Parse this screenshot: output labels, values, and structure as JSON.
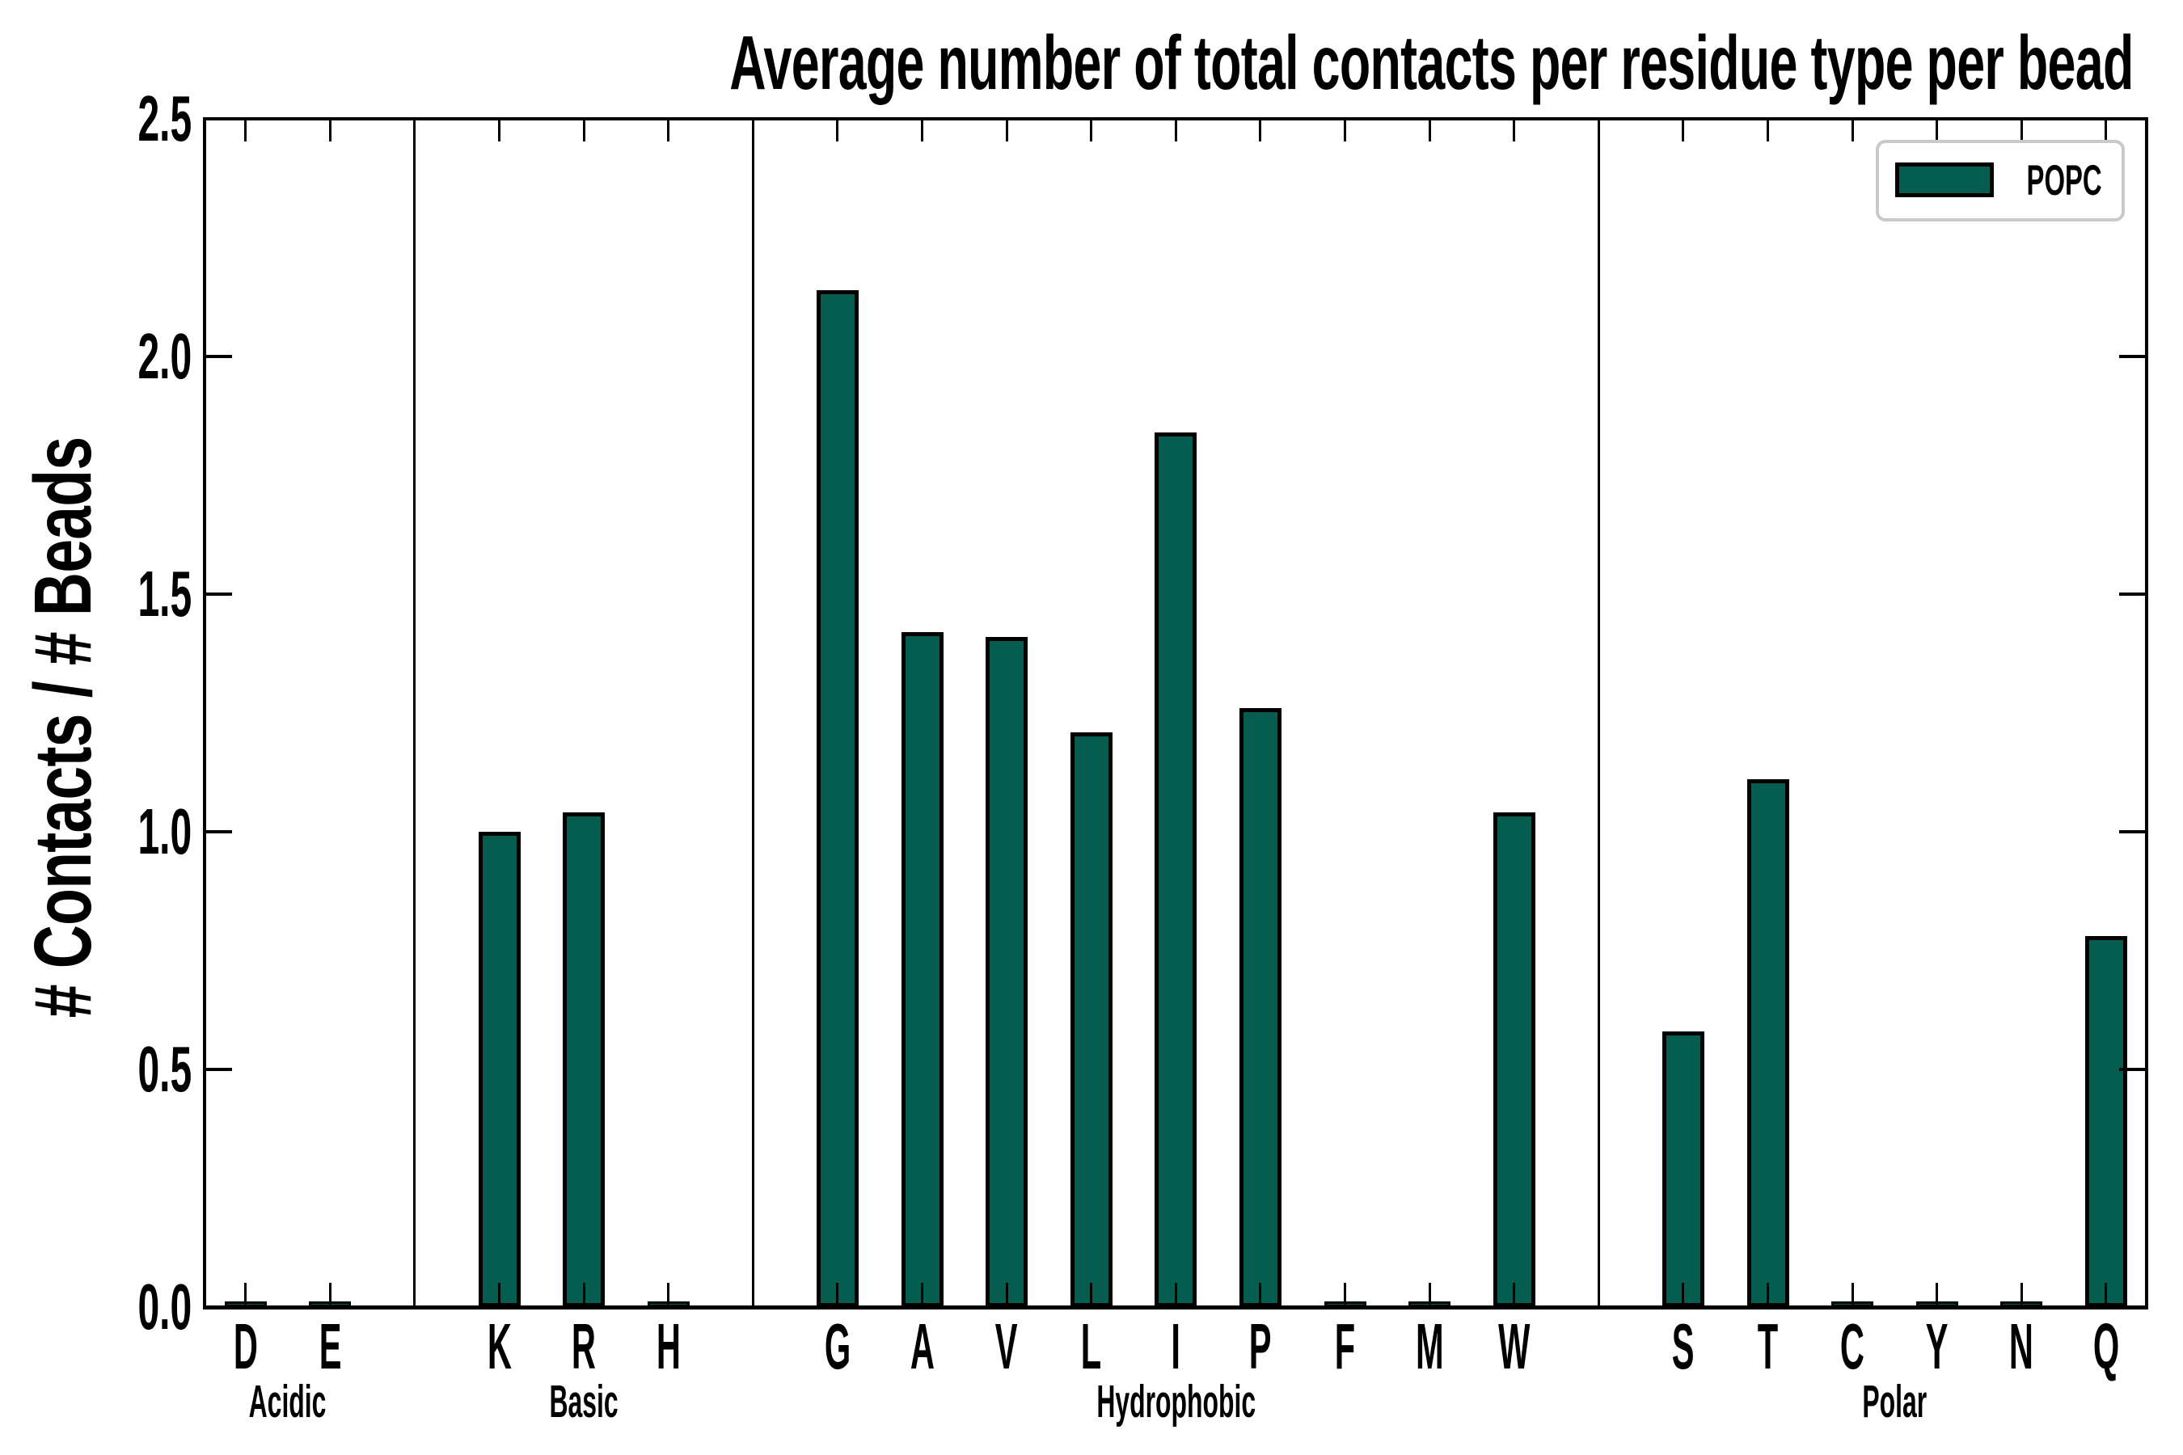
{
  "chart_data": {
    "type": "bar",
    "title": "Average number of total contacts per residue type per bead",
    "ylabel": "# Contacts / # Beads",
    "xlabel": "",
    "ylim": [
      0.0,
      2.5
    ],
    "ytick_labels": [
      "0.0",
      "0.5",
      "1.0",
      "1.5",
      "2.0",
      "2.5"
    ],
    "grid": false,
    "legend": {
      "entries": [
        "POPC"
      ],
      "position": "upper-right"
    },
    "bar_color": "#055d50",
    "bar_edge_color": "#000000",
    "legend_border_color": "#c9c9c9",
    "groups": [
      {
        "name": "Acidic",
        "residues": [
          "D",
          "E"
        ],
        "values": [
          0.005,
          0.005
        ]
      },
      {
        "name": "Basic",
        "residues": [
          "K",
          "R",
          "H"
        ],
        "values": [
          1.0,
          1.04,
          0.005
        ]
      },
      {
        "name": "Hydrophobic",
        "residues": [
          "G",
          "A",
          "V",
          "L",
          "I",
          "P",
          "F",
          "M",
          "W"
        ],
        "values": [
          2.14,
          1.42,
          1.41,
          1.21,
          1.84,
          1.26,
          0.005,
          0.005,
          1.04
        ]
      },
      {
        "name": "Polar",
        "residues": [
          "S",
          "T",
          "C",
          "Y",
          "N",
          "Q"
        ],
        "values": [
          0.58,
          1.11,
          0.005,
          0.005,
          0.005,
          0.78
        ]
      }
    ],
    "categories": [
      "D",
      "E",
      "K",
      "R",
      "H",
      "G",
      "A",
      "V",
      "L",
      "I",
      "P",
      "F",
      "M",
      "W",
      "S",
      "T",
      "C",
      "Y",
      "N",
      "Q"
    ],
    "values": [
      0.005,
      0.005,
      1.0,
      1.04,
      0.005,
      2.14,
      1.42,
      1.41,
      1.21,
      1.84,
      1.26,
      0.005,
      0.005,
      1.04,
      0.58,
      1.11,
      0.005,
      0.005,
      0.005,
      0.78
    ]
  }
}
